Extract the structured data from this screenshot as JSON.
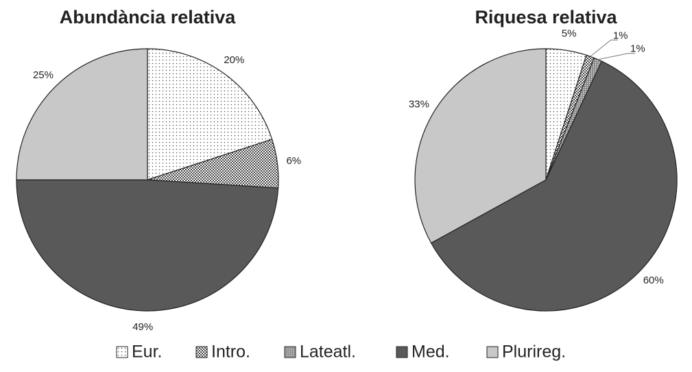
{
  "chart_data": [
    {
      "type": "pie",
      "title": "Abundància relativa",
      "categories": [
        "Eur.",
        "Intro.",
        "Lateatl.",
        "Med.",
        "Plurireg."
      ],
      "colors": [
        "#ffffff",
        "#ffffff",
        "#ffffff",
        "#595959",
        "#c8c8c8"
      ],
      "patterns": [
        "dots",
        "checker",
        "dense-dots",
        null,
        null
      ],
      "values": [
        20,
        6,
        0,
        49,
        25
      ],
      "value_labels": [
        "20%",
        "6%",
        null,
        "49%",
        "25%"
      ]
    },
    {
      "type": "pie",
      "title": "Riquesa relativa",
      "values": [
        5,
        1,
        1,
        60,
        33
      ],
      "value_labels": [
        "5%",
        "1%",
        "1%",
        "60%",
        "33%"
      ]
    }
  ]
}
